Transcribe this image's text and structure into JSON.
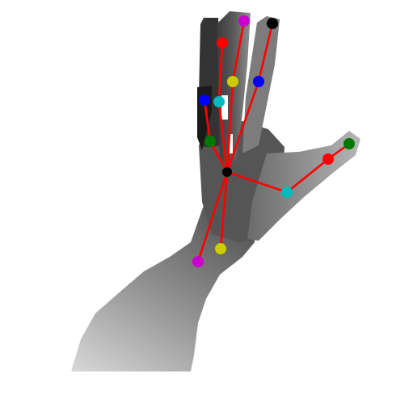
{
  "colors": {
    "background": "#ffffff",
    "bone": "#ff0000",
    "joint_red": "#ff0000",
    "joint_black": "#000000",
    "joint_blue": "#0000ff",
    "joint_yellow": "#cccc00",
    "joint_cyan": "#00bbbb",
    "joint_green": "#007700",
    "joint_magenta": "#cc00cc",
    "depth_near": "#2e2e2e",
    "depth_mid": "#777777",
    "depth_far": "#c8c8c8"
  }
}
